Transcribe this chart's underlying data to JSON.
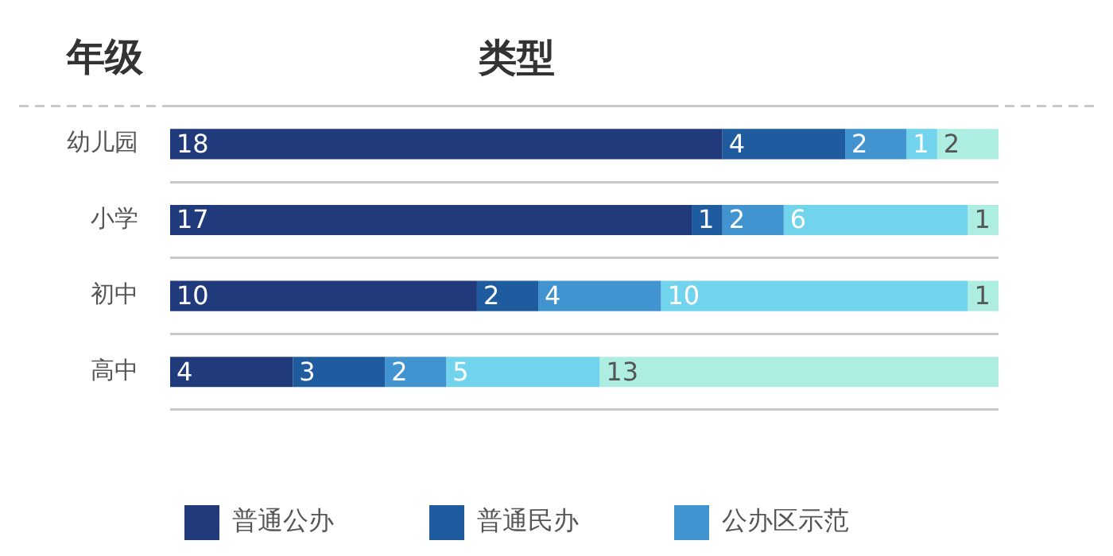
{
  "chart_data": {
    "type": "bar",
    "orientation": "horizontal",
    "stacked": true,
    "title": "类型",
    "ylabel": "年级",
    "categories": [
      "幼儿园",
      "小学",
      "初中",
      "高中"
    ],
    "series": [
      {
        "name": "普通公办",
        "color": "#213a7c",
        "values": [
          18,
          17,
          10,
          4
        ]
      },
      {
        "name": "普通民办",
        "color": "#1f5b9f",
        "values": [
          4,
          1,
          2,
          3
        ]
      },
      {
        "name": "公办区示范",
        "color": "#4194d0",
        "values": [
          2,
          2,
          4,
          2
        ]
      },
      {
        "color": "#72d4ec",
        "values": [
          1,
          6,
          10,
          5
        ]
      },
      {
        "color": "#aeeee2",
        "values": [
          2,
          1,
          1,
          13
        ]
      }
    ],
    "xlim": [
      0,
      27
    ],
    "data_labels": true,
    "grid": "y",
    "legend": "bottom",
    "tick_labels": "y"
  }
}
